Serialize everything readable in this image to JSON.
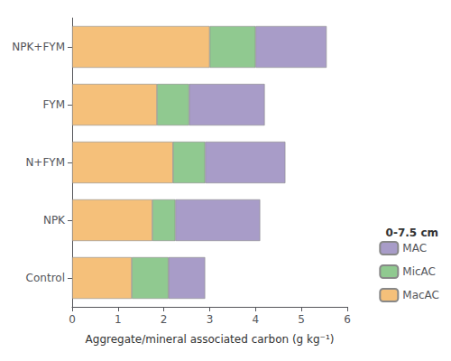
{
  "chart_data": {
    "type": "bar",
    "orientation": "horizontal",
    "stacked": true,
    "categories": [
      "Control",
      "NPK",
      "N+FYM",
      "FYM",
      "NPK+FYM"
    ],
    "series": [
      {
        "name": "MacAC",
        "color": "#F5C07A",
        "values": [
          1.3,
          1.75,
          2.2,
          1.85,
          3.0
        ]
      },
      {
        "name": "MicAC",
        "color": "#90C990",
        "values": [
          0.8,
          0.5,
          0.7,
          0.7,
          1.0
        ]
      },
      {
        "name": "MAC",
        "color": "#A89CC8",
        "values": [
          0.8,
          1.85,
          1.75,
          1.65,
          1.55
        ]
      }
    ],
    "xlabel": "Aggregate/mineral associated carbon (g kg⁻¹)",
    "legend_title": "0-7.5 cm",
    "legend": "lower right",
    "xlim": [
      0.0,
      6.0
    ],
    "xticks": [
      0,
      1,
      2,
      3,
      4,
      5,
      6
    ],
    "grid": false
  }
}
